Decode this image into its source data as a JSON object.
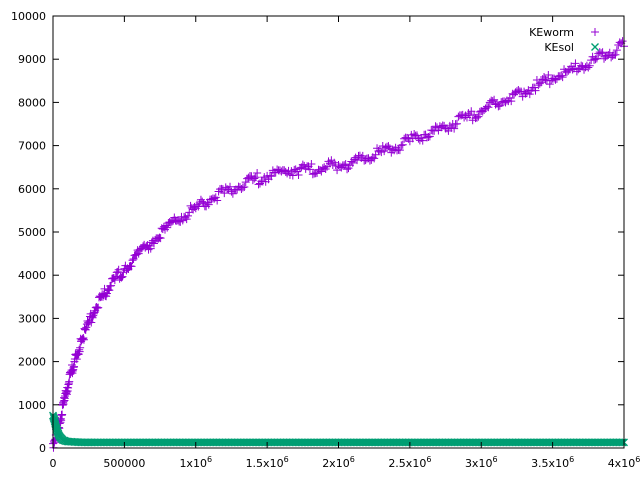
{
  "chart_data": {
    "type": "scatter",
    "title": "",
    "xlabel": "",
    "ylabel": "",
    "xlim": [
      0,
      4000000
    ],
    "ylim": [
      0,
      10000
    ],
    "x_ticks": [
      {
        "value": 0,
        "label": "0"
      },
      {
        "value": 500000,
        "label": "500000"
      },
      {
        "value": 1000000,
        "label": "1x10",
        "sup": "6"
      },
      {
        "value": 1500000,
        "label": "1.5x10",
        "sup": "6"
      },
      {
        "value": 2000000,
        "label": "2x10",
        "sup": "6"
      },
      {
        "value": 2500000,
        "label": "2.5x10",
        "sup": "6"
      },
      {
        "value": 3000000,
        "label": "3x10",
        "sup": "6"
      },
      {
        "value": 3500000,
        "label": "3.5x10",
        "sup": "6"
      },
      {
        "value": 4000000,
        "label": "4x10",
        "sup": "6"
      }
    ],
    "y_ticks": [
      {
        "value": 0,
        "label": "0"
      },
      {
        "value": 1000,
        "label": "1000"
      },
      {
        "value": 2000,
        "label": "2000"
      },
      {
        "value": 3000,
        "label": "3000"
      },
      {
        "value": 4000,
        "label": "4000"
      },
      {
        "value": 5000,
        "label": "5000"
      },
      {
        "value": 6000,
        "label": "6000"
      },
      {
        "value": 7000,
        "label": "7000"
      },
      {
        "value": 8000,
        "label": "8000"
      },
      {
        "value": 9000,
        "label": "9000"
      },
      {
        "value": 10000,
        "label": "10000"
      }
    ],
    "grid": false,
    "legend_position": "top-right",
    "series": [
      {
        "name": "KEworm",
        "marker": "plus",
        "color": "#9400d3",
        "points": [
          [
            0,
            100
          ],
          [
            20000,
            300
          ],
          [
            50000,
            650
          ],
          [
            80000,
            1100
          ],
          [
            100000,
            1400
          ],
          [
            150000,
            2000
          ],
          [
            200000,
            2500
          ],
          [
            250000,
            2900
          ],
          [
            300000,
            3250
          ],
          [
            350000,
            3500
          ],
          [
            400000,
            3750
          ],
          [
            500000,
            4150
          ],
          [
            600000,
            4500
          ],
          [
            700000,
            4800
          ],
          [
            800000,
            5100
          ],
          [
            900000,
            5350
          ],
          [
            1000000,
            5550
          ],
          [
            1100000,
            5750
          ],
          [
            1200000,
            5900
          ],
          [
            1300000,
            6050
          ],
          [
            1400000,
            6200
          ],
          [
            1500000,
            6300
          ],
          [
            1600000,
            6400
          ],
          [
            1700000,
            6450
          ],
          [
            1800000,
            6450
          ],
          [
            1900000,
            6500
          ],
          [
            2000000,
            6550
          ],
          [
            2100000,
            6600
          ],
          [
            2200000,
            6700
          ],
          [
            2300000,
            6850
          ],
          [
            2400000,
            6950
          ],
          [
            2500000,
            7100
          ],
          [
            2600000,
            7250
          ],
          [
            2700000,
            7350
          ],
          [
            2800000,
            7500
          ],
          [
            2900000,
            7650
          ],
          [
            3000000,
            7800
          ],
          [
            3100000,
            7950
          ],
          [
            3200000,
            8100
          ],
          [
            3300000,
            8250
          ],
          [
            3400000,
            8400
          ],
          [
            3500000,
            8550
          ],
          [
            3600000,
            8700
          ],
          [
            3700000,
            8850
          ],
          [
            3800000,
            9000
          ],
          [
            3900000,
            9150
          ],
          [
            4000000,
            9300
          ]
        ]
      },
      {
        "name": "KEsol",
        "marker": "x",
        "color": "#009e73",
        "points": [
          [
            0,
            750
          ],
          [
            10000,
            650
          ],
          [
            20000,
            500
          ],
          [
            30000,
            400
          ],
          [
            40000,
            300
          ],
          [
            50000,
            250
          ],
          [
            70000,
            180
          ],
          [
            100000,
            150
          ],
          [
            150000,
            140
          ],
          [
            200000,
            130
          ],
          [
            300000,
            130
          ],
          [
            500000,
            130
          ],
          [
            1000000,
            130
          ],
          [
            1500000,
            130
          ],
          [
            2000000,
            130
          ],
          [
            2500000,
            130
          ],
          [
            3000000,
            130
          ],
          [
            3500000,
            130
          ],
          [
            4000000,
            130
          ]
        ]
      }
    ]
  }
}
